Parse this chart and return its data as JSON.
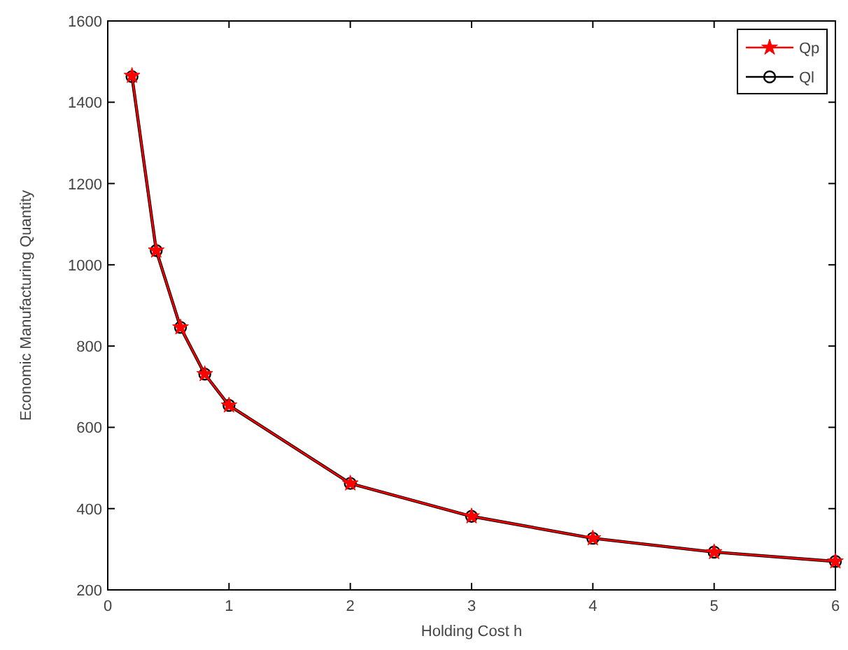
{
  "chart_data": {
    "type": "line",
    "xlabel": "Holding Cost h",
    "ylabel": "Economic Manufacturing Quantity",
    "x": [
      0.2,
      0.4,
      0.6,
      0.8,
      1,
      2,
      3,
      4,
      5,
      6
    ],
    "series": [
      {
        "name": "Ql",
        "color": "#000000",
        "marker": "circle",
        "values": [
          1463,
          1035,
          846,
          731,
          654,
          462,
          381,
          327,
          293,
          270
        ]
      },
      {
        "name": "Qp",
        "color": "#ff0000",
        "marker": "star",
        "values": [
          1465,
          1035,
          846,
          731,
          654,
          462,
          381,
          327,
          293,
          270
        ]
      }
    ],
    "xlim": [
      0,
      6
    ],
    "xticks": [
      0,
      1,
      2,
      3,
      4,
      5,
      6
    ],
    "ylim": [
      200,
      1600
    ],
    "yticks": [
      200,
      400,
      600,
      800,
      1000,
      1200,
      1400,
      1600
    ],
    "grid": false,
    "legend": "top right",
    "line_style": "solid"
  }
}
